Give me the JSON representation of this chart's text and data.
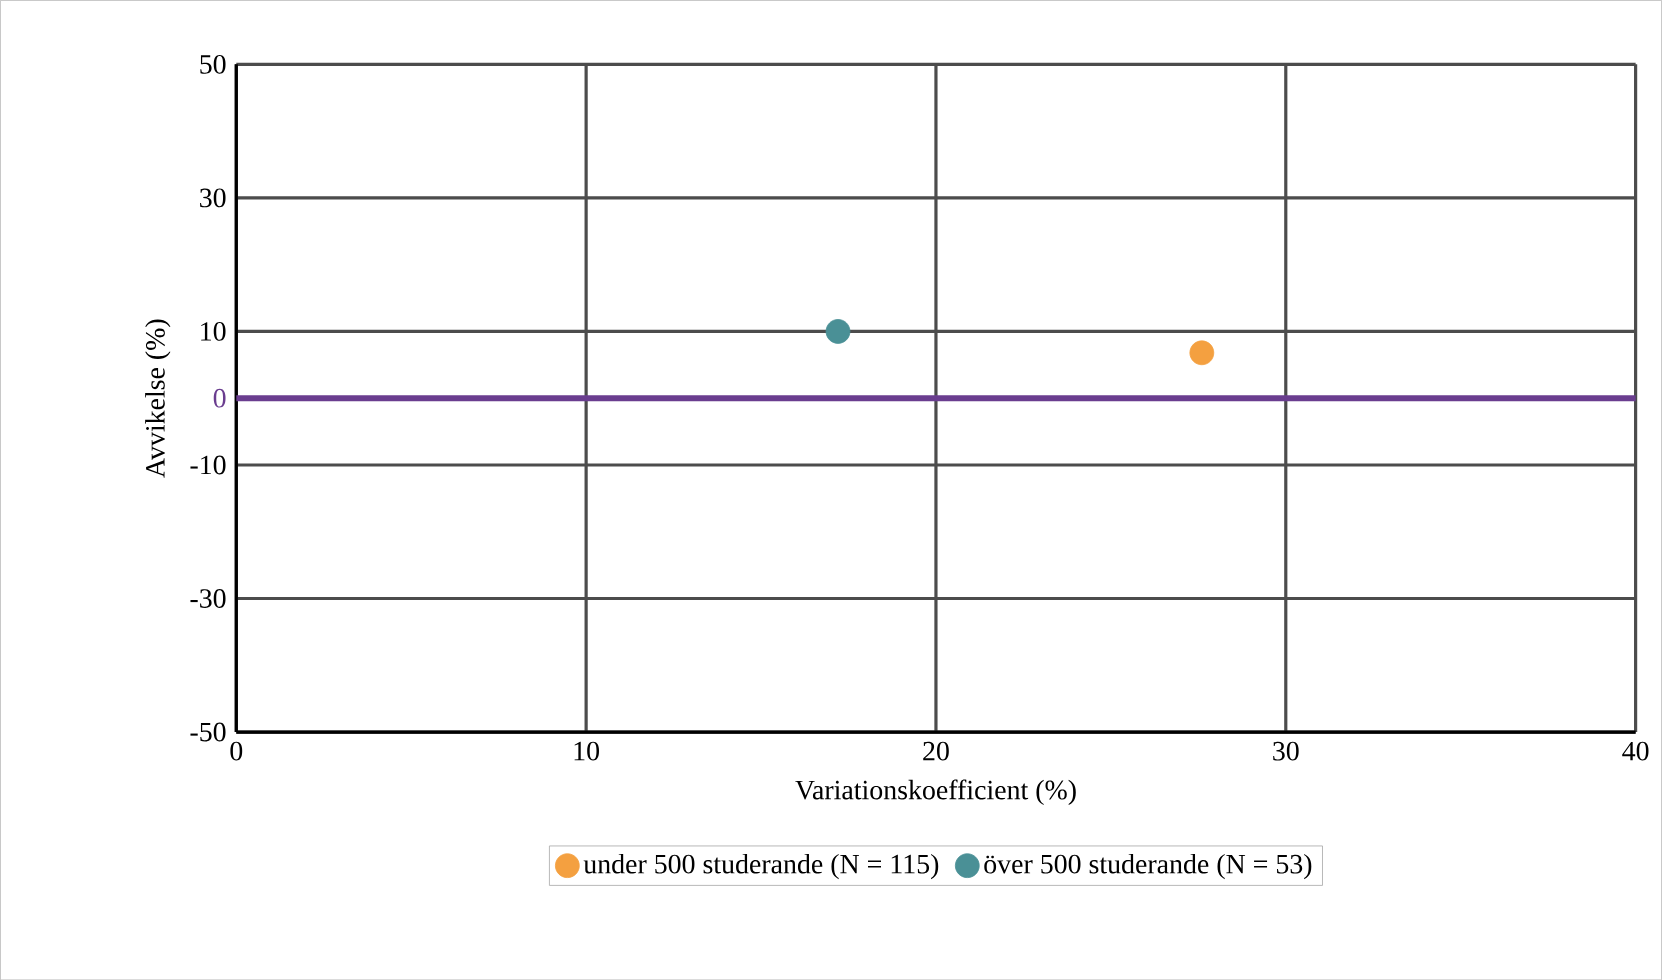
{
  "chart_data": {
    "type": "scatter",
    "xlabel": "Variationskoefficient (%)",
    "ylabel": "Avvikelse (%)",
    "xlim": [
      0,
      40
    ],
    "ylim": [
      -50,
      50
    ],
    "xticks": [
      0,
      10,
      20,
      30,
      40
    ],
    "yticks": [
      -50,
      -30,
      -10,
      10,
      30,
      50
    ],
    "grid": true,
    "legend": "bottom",
    "ref_lines": [
      {
        "axis": "y",
        "value": 0,
        "label": "0",
        "color": "#6a3d8f"
      }
    ],
    "series": [
      {
        "name": "under 500 studerande (N = 115)",
        "color": "#f4a040",
        "x": [
          27.6
        ],
        "values": [
          6.8
        ]
      },
      {
        "name": "över 500 studerande (N = 53)",
        "color": "#4a9096",
        "x": [
          17.2
        ],
        "values": [
          10
        ]
      }
    ]
  }
}
